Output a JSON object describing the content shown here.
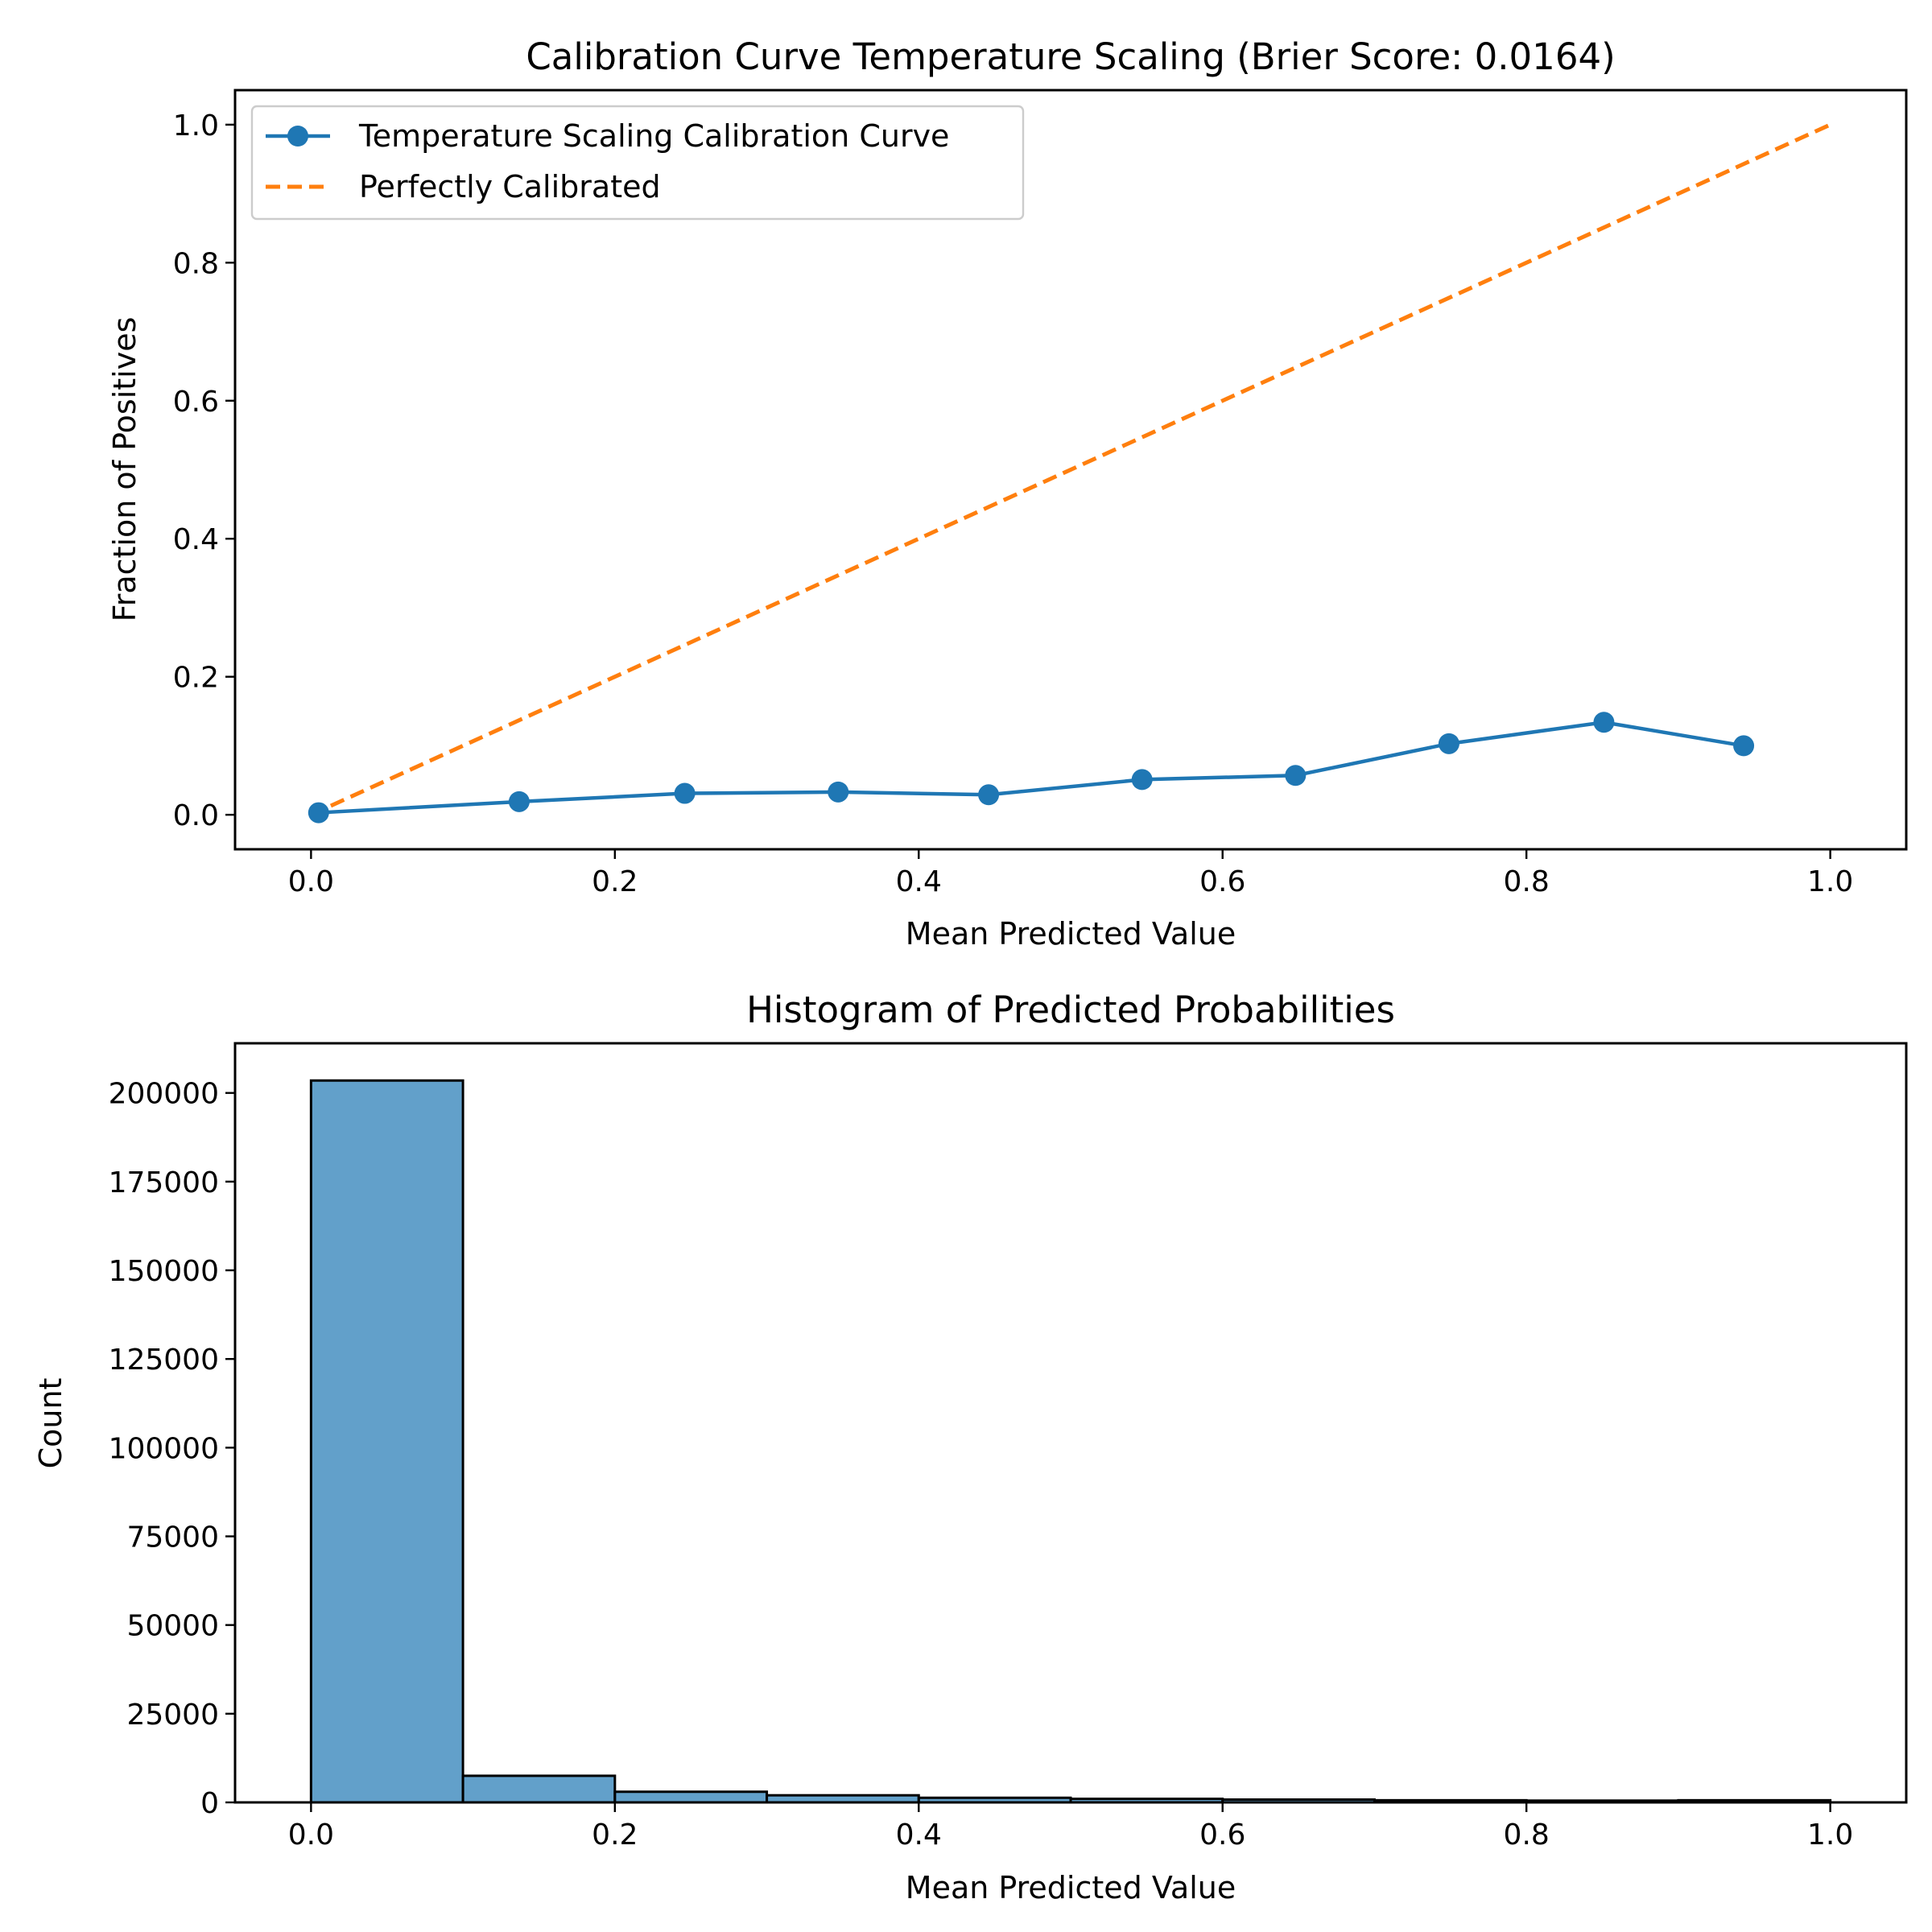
{
  "colors": {
    "calibration_line": "#1f77b4",
    "perfect_line": "#ff7f0e",
    "hist_fill": "#1f77b4",
    "hist_edge": "#000000"
  },
  "chart_data": [
    {
      "type": "line",
      "title": "Calibration Curve Temperature Scaling (Brier Score: 0.0164)",
      "xlabel": "Mean Predicted Value",
      "ylabel": "Fraction of Positives",
      "xlim": [
        -0.05,
        1.05
      ],
      "ylim": [
        -0.05,
        1.05
      ],
      "xticks": [
        0.0,
        0.2,
        0.4,
        0.6,
        0.8,
        1.0
      ],
      "xtick_labels": [
        "0.0",
        "0.2",
        "0.4",
        "0.6",
        "0.8",
        "1.0"
      ],
      "yticks": [
        0.0,
        0.2,
        0.4,
        0.6,
        0.8,
        1.0
      ],
      "ytick_labels": [
        "0.0",
        "0.2",
        "0.4",
        "0.6",
        "0.8",
        "1.0"
      ],
      "grid": false,
      "legend": {
        "location": "upper left"
      },
      "series": [
        {
          "name": "Temperature Scaling Calibration Curve",
          "style": "solid line with circle markers",
          "color": "#1f77b4",
          "x": [
            0.005,
            0.137,
            0.246,
            0.347,
            0.446,
            0.547,
            0.648,
            0.749,
            0.851,
            0.943
          ],
          "y": [
            0.003,
            0.019,
            0.031,
            0.033,
            0.029,
            0.051,
            0.057,
            0.103,
            0.134,
            0.1
          ]
        },
        {
          "name": "Perfectly Calibrated",
          "style": "dashed line",
          "color": "#ff7f0e",
          "x": [
            0.0,
            1.0
          ],
          "y": [
            0.0,
            1.0
          ]
        }
      ]
    },
    {
      "type": "bar",
      "title": "Histogram of Predicted Probabilities",
      "xlabel": "Mean Predicted Value",
      "ylabel": "Count",
      "xlim": [
        -0.05,
        1.05
      ],
      "ylim": [
        0,
        214000
      ],
      "xticks": [
        0.0,
        0.2,
        0.4,
        0.6,
        0.8,
        1.0
      ],
      "xtick_labels": [
        "0.0",
        "0.2",
        "0.4",
        "0.6",
        "0.8",
        "1.0"
      ],
      "yticks": [
        0,
        25000,
        50000,
        75000,
        100000,
        125000,
        150000,
        175000,
        200000
      ],
      "ytick_labels": [
        "0",
        "25000",
        "50000",
        "75000",
        "100000",
        "125000",
        "150000",
        "175000",
        "200000"
      ],
      "grid": false,
      "bin_edges": [
        0.0,
        0.1,
        0.2,
        0.3,
        0.4,
        0.5,
        0.6,
        0.7,
        0.8,
        0.9,
        1.0
      ],
      "values": [
        203500,
        7500,
        3000,
        2000,
        1300,
        1000,
        800,
        600,
        500,
        600
      ]
    }
  ]
}
